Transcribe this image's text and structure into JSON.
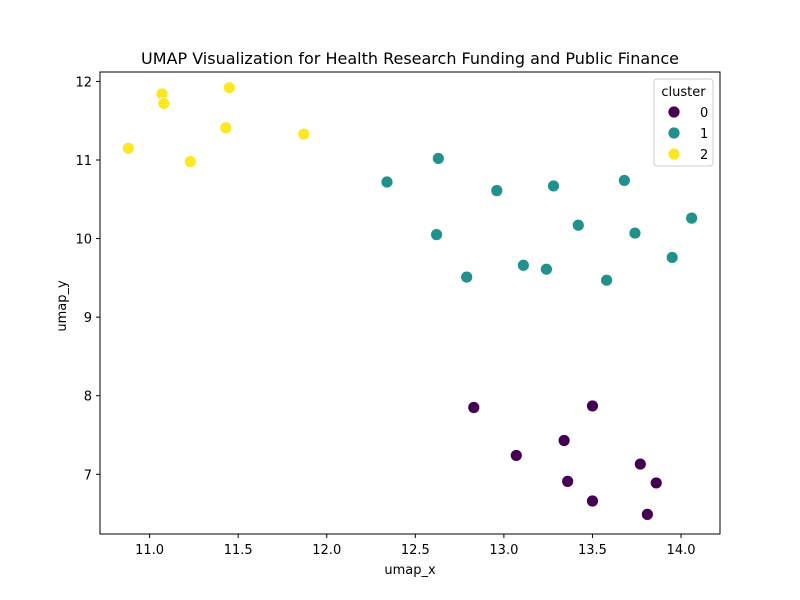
{
  "chart_data": {
    "type": "scatter",
    "title": "UMAP Visualization for Health Research Funding and Public Finance",
    "xlabel": "umap_x",
    "ylabel": "umap_y",
    "xlim": [
      10.72,
      14.22
    ],
    "ylim": [
      6.24,
      12.12
    ],
    "xticks": [
      11.0,
      11.5,
      12.0,
      12.5,
      13.0,
      13.5,
      14.0
    ],
    "yticks": [
      7,
      8,
      9,
      10,
      11,
      12
    ],
    "xtick_labels": [
      "11.0",
      "11.5",
      "12.0",
      "12.5",
      "13.0",
      "13.5",
      "14.0"
    ],
    "ytick_labels": [
      "7",
      "8",
      "9",
      "10",
      "11",
      "12"
    ],
    "grid": false,
    "legend": {
      "title": "cluster",
      "placement": "top-right",
      "entries": [
        {
          "label": "0",
          "color": "#440154"
        },
        {
          "label": "1",
          "color": "#21918c"
        },
        {
          "label": "2",
          "color": "#fde725"
        }
      ]
    },
    "series": [
      {
        "name": "0",
        "color": "#440154",
        "points": [
          {
            "x": 12.83,
            "y": 7.85
          },
          {
            "x": 13.5,
            "y": 7.87
          },
          {
            "x": 13.34,
            "y": 7.43
          },
          {
            "x": 13.07,
            "y": 7.24
          },
          {
            "x": 13.77,
            "y": 7.13
          },
          {
            "x": 13.36,
            "y": 6.91
          },
          {
            "x": 13.86,
            "y": 6.89
          },
          {
            "x": 13.5,
            "y": 6.66
          },
          {
            "x": 13.81,
            "y": 6.49
          }
        ]
      },
      {
        "name": "1",
        "color": "#21918c",
        "points": [
          {
            "x": 12.34,
            "y": 10.72
          },
          {
            "x": 12.63,
            "y": 11.02
          },
          {
            "x": 12.96,
            "y": 10.61
          },
          {
            "x": 13.28,
            "y": 10.67
          },
          {
            "x": 13.68,
            "y": 10.74
          },
          {
            "x": 14.06,
            "y": 10.26
          },
          {
            "x": 12.62,
            "y": 10.05
          },
          {
            "x": 13.42,
            "y": 10.17
          },
          {
            "x": 13.74,
            "y": 10.07
          },
          {
            "x": 13.95,
            "y": 9.76
          },
          {
            "x": 12.79,
            "y": 9.51
          },
          {
            "x": 13.11,
            "y": 9.66
          },
          {
            "x": 13.24,
            "y": 9.61
          },
          {
            "x": 13.58,
            "y": 9.47
          }
        ]
      },
      {
        "name": "2",
        "color": "#fde725",
        "points": [
          {
            "x": 10.88,
            "y": 11.15
          },
          {
            "x": 11.07,
            "y": 11.84
          },
          {
            "x": 11.08,
            "y": 11.72
          },
          {
            "x": 11.45,
            "y": 11.92
          },
          {
            "x": 11.43,
            "y": 11.41
          },
          {
            "x": 11.23,
            "y": 10.98
          },
          {
            "x": 11.87,
            "y": 11.33
          }
        ]
      }
    ]
  }
}
